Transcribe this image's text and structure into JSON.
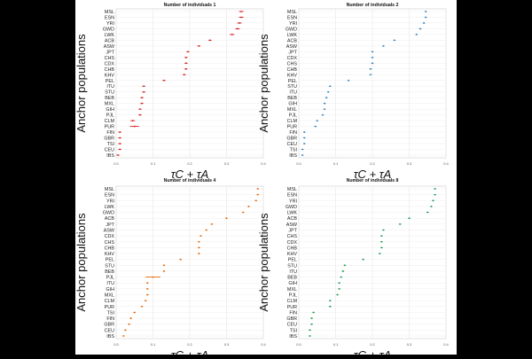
{
  "figure": {
    "ylabel": "Anchor populations",
    "xlabel": "τC + τA"
  },
  "chart_data": [
    {
      "type": "scatter",
      "title": "Number of individuals 1",
      "color": "#d7191c",
      "categories": [
        "MSL",
        "ESN",
        "YRI",
        "GWD",
        "LWK",
        "ACB",
        "ASW",
        "JPT",
        "CHS",
        "CDX",
        "CHB",
        "KHV",
        "PEL",
        "ITU",
        "STU",
        "BEB",
        "MXL",
        "GIH",
        "PJL",
        "CLM",
        "PUR",
        "FIN",
        "GBR",
        "TSI",
        "CEU",
        "IBS"
      ],
      "x_ticks": [
        "0.0",
        "0.1",
        "0.2",
        "0.3",
        "0.4"
      ],
      "xlim": [
        0,
        0.4
      ],
      "values": [
        0.34,
        0.34,
        0.335,
        0.33,
        0.315,
        0.255,
        0.225,
        0.195,
        0.19,
        0.19,
        0.19,
        0.185,
        0.13,
        0.075,
        0.075,
        0.07,
        0.07,
        0.065,
        0.065,
        0.045,
        0.05,
        0.01,
        0.01,
        0.01,
        0.01,
        0.005
      ],
      "err": [
        0.006,
        0.006,
        0.006,
        0.006,
        0.006,
        0.004,
        0.004,
        0.004,
        0.004,
        0.004,
        0.004,
        0.004,
        0.004,
        0.004,
        0.004,
        0.004,
        0.004,
        0.004,
        0.004,
        0.006,
        0.012,
        0.004,
        0.004,
        0.004,
        0.004,
        0.004
      ]
    },
    {
      "type": "scatter",
      "title": "Number of individuals 2",
      "color": "#2c7fb8",
      "categories": [
        "MSL",
        "ESN",
        "YRI",
        "GWD",
        "LWK",
        "ACB",
        "ASW",
        "JPT",
        "CDX",
        "CHS",
        "CHB",
        "KHV",
        "PEL",
        "STU",
        "ITU",
        "BEB",
        "GIH",
        "MXL",
        "PJL",
        "CLM",
        "PUR",
        "FIN",
        "GBR",
        "CEU",
        "TSI",
        "IBS"
      ],
      "x_ticks": [
        "0.0",
        "0.1",
        "0.2",
        "0.3",
        "0.4"
      ],
      "xlim": [
        0,
        0.4
      ],
      "values": [
        0.345,
        0.345,
        0.34,
        0.33,
        0.32,
        0.26,
        0.23,
        0.2,
        0.2,
        0.2,
        0.195,
        0.195,
        0.135,
        0.085,
        0.08,
        0.075,
        0.07,
        0.07,
        0.065,
        0.05,
        0.045,
        0.015,
        0.015,
        0.015,
        0.01,
        0.01
      ],
      "err": [
        0.003,
        0.003,
        0.003,
        0.003,
        0.003,
        0.003,
        0.003,
        0.003,
        0.003,
        0.003,
        0.003,
        0.003,
        0.003,
        0.003,
        0.003,
        0.003,
        0.003,
        0.003,
        0.003,
        0.003,
        0.003,
        0.003,
        0.003,
        0.003,
        0.003,
        0.003
      ]
    },
    {
      "type": "scatter",
      "title": "Number of individuals 4",
      "color": "#e66101",
      "categories": [
        "MSL",
        "ESN",
        "YRI",
        "LWK",
        "GWD",
        "ACB",
        "JPT",
        "ASW",
        "CDX",
        "CHS",
        "CHB",
        "KHV",
        "PEL",
        "STU",
        "BEB",
        "PJL",
        "ITU",
        "GIH",
        "MXL",
        "CLM",
        "PUR",
        "TSI",
        "FIN",
        "GBR",
        "CEU",
        "IBS"
      ],
      "x_ticks": [
        "0.0",
        "0.1",
        "0.2",
        "0.3",
        "0.4"
      ],
      "xlim": [
        0,
        0.4
      ],
      "values": [
        0.385,
        0.385,
        0.38,
        0.36,
        0.345,
        0.3,
        0.26,
        0.245,
        0.23,
        0.225,
        0.225,
        0.225,
        0.175,
        0.13,
        0.13,
        0.1,
        0.085,
        0.085,
        0.085,
        0.08,
        0.07,
        0.05,
        0.04,
        0.035,
        0.025,
        0.02
      ],
      "err": [
        0.003,
        0.003,
        0.003,
        0.003,
        0.003,
        0.003,
        0.003,
        0.003,
        0.003,
        0.003,
        0.003,
        0.003,
        0.003,
        0.003,
        0.003,
        0.02,
        0.003,
        0.003,
        0.003,
        0.003,
        0.003,
        0.003,
        0.003,
        0.003,
        0.003,
        0.003
      ]
    },
    {
      "type": "scatter",
      "title": "Number of individuals 8",
      "color": "#1a9850",
      "categories": [
        "MSL",
        "ESN",
        "YRI",
        "GWD",
        "LWK",
        "ACB",
        "ASW",
        "JPT",
        "CHS",
        "CDX",
        "CHB",
        "KHV",
        "PEL",
        "STU",
        "ITU",
        "BEB",
        "GIH",
        "MXL",
        "PJL",
        "CLM",
        "PUR",
        "FIN",
        "GBR",
        "CEU",
        "TSI",
        "IBS"
      ],
      "x_ticks": [
        "0.0",
        "0.1",
        "0.2",
        "0.3",
        "0.4"
      ],
      "xlim": [
        0,
        0.4
      ],
      "values": [
        0.37,
        0.37,
        0.365,
        0.36,
        0.35,
        0.3,
        0.275,
        0.23,
        0.225,
        0.225,
        0.225,
        0.22,
        0.175,
        0.125,
        0.12,
        0.115,
        0.11,
        0.11,
        0.105,
        0.085,
        0.085,
        0.04,
        0.035,
        0.035,
        0.03,
        0.03
      ],
      "err": [
        0.003,
        0.003,
        0.003,
        0.003,
        0.003,
        0.003,
        0.003,
        0.003,
        0.003,
        0.003,
        0.003,
        0.003,
        0.003,
        0.003,
        0.003,
        0.003,
        0.003,
        0.003,
        0.003,
        0.003,
        0.003,
        0.003,
        0.003,
        0.003,
        0.003,
        0.003
      ]
    }
  ]
}
